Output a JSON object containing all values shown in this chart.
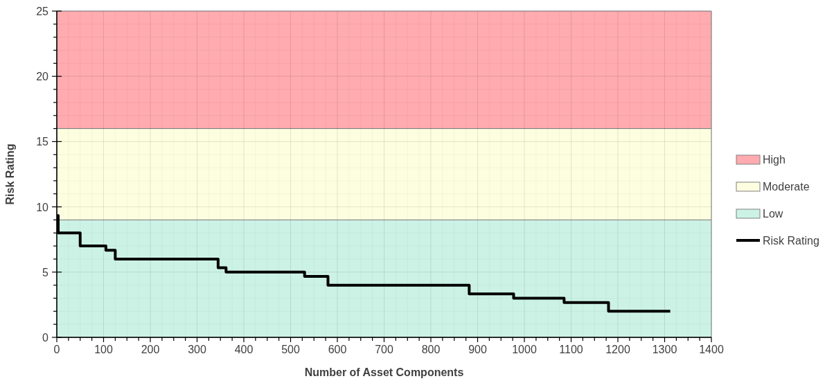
{
  "chart_data": {
    "type": "step",
    "xlabel": "Number of Asset Components",
    "ylabel": "Risk Rating",
    "xlim": [
      0,
      1400
    ],
    "ylim": [
      0,
      25
    ],
    "xticks": [
      0,
      {
        "value": 25,
        "label": null
      },
      {
        "value": 50,
        "label": null
      },
      {
        "value": 75,
        "label": null
      },
      100,
      {
        "value": 125,
        "label": null
      },
      {
        "value": 150,
        "label": null
      },
      {
        "value": 175,
        "label": null
      },
      200,
      {
        "value": 225,
        "label": null
      },
      {
        "value": 250,
        "label": null
      },
      {
        "value": 275,
        "label": null
      },
      300,
      {
        "value": 325,
        "label": null
      },
      {
        "value": 350,
        "label": null
      },
      {
        "value": 375,
        "label": null
      },
      400,
      {
        "value": 425,
        "label": null
      },
      {
        "value": 450,
        "label": null
      },
      {
        "value": 475,
        "label": null
      },
      500,
      {
        "value": 525,
        "label": null
      },
      {
        "value": 550,
        "label": null
      },
      {
        "value": 575,
        "label": null
      },
      600,
      {
        "value": 625,
        "label": null
      },
      {
        "value": 650,
        "label": null
      },
      {
        "value": 675,
        "label": null
      },
      700,
      {
        "value": 725,
        "label": null
      },
      {
        "value": 750,
        "label": null
      },
      {
        "value": 775,
        "label": null
      },
      800,
      {
        "value": 825,
        "label": null
      },
      {
        "value": 850,
        "label": null
      },
      {
        "value": 875,
        "label": null
      },
      900,
      {
        "value": 925,
        "label": null
      },
      {
        "value": 950,
        "label": null
      },
      {
        "value": 975,
        "label": null
      },
      1000,
      {
        "value": 1025,
        "label": null
      },
      {
        "value": 1050,
        "label": null
      },
      {
        "value": 1075,
        "label": null
      },
      1100,
      {
        "value": 1125,
        "label": null
      },
      {
        "value": 1150,
        "label": null
      },
      {
        "value": 1175,
        "label": null
      },
      1200,
      {
        "value": 1225,
        "label": null
      },
      {
        "value": 1250,
        "label": null
      },
      {
        "value": 1275,
        "label": null
      },
      1300,
      {
        "value": 1325,
        "label": null
      },
      {
        "value": 1350,
        "label": null
      },
      {
        "value": 1375,
        "label": null
      },
      1400
    ],
    "yticks": [
      0,
      {
        "value": 1,
        "label": null
      },
      {
        "value": 2,
        "label": null
      },
      {
        "value": 3,
        "label": null
      },
      {
        "value": 4,
        "label": null
      },
      5,
      {
        "value": 6,
        "label": null
      },
      {
        "value": 7,
        "label": null
      },
      {
        "value": 8,
        "label": null
      },
      {
        "value": 9,
        "label": null
      },
      10,
      {
        "value": 11,
        "label": null
      },
      {
        "value": 12,
        "label": null
      },
      {
        "value": 13,
        "label": null
      },
      {
        "value": 14,
        "label": null
      },
      15,
      {
        "value": 16,
        "label": null
      },
      {
        "value": 17,
        "label": null
      },
      {
        "value": 18,
        "label": null
      },
      {
        "value": 19,
        "label": null
      },
      20,
      {
        "value": 21,
        "label": null
      },
      {
        "value": 22,
        "label": null
      },
      {
        "value": 23,
        "label": null
      },
      {
        "value": 24,
        "label": null
      },
      25
    ],
    "grid": true,
    "legend": "right",
    "stacked": true,
    "series": [
      {
        "name": "Low",
        "type": "area",
        "color": "#ccf2e6",
        "x": [
          0,
          1400
        ],
        "values": [
          9,
          9
        ]
      },
      {
        "name": "Moderate",
        "type": "area",
        "color": "#fdfde0",
        "x": [
          0,
          1400
        ],
        "values": [
          7,
          7
        ]
      },
      {
        "name": "High",
        "type": "area",
        "color": "#ffabb0",
        "x": [
          0,
          1400
        ],
        "values": [
          9,
          9
        ]
      },
      {
        "name": "Risk Rating",
        "color": "#000000",
        "x": [
          0,
          3,
          50,
          105,
          125,
          345,
          362,
          530,
          580,
          882,
          977,
          1085,
          1180,
          1312
        ],
        "values": [
          9.33,
          8,
          7,
          6.67,
          6,
          5.33,
          5,
          4.67,
          4,
          3.33,
          3,
          2.67,
          2,
          2
        ]
      }
    ]
  }
}
